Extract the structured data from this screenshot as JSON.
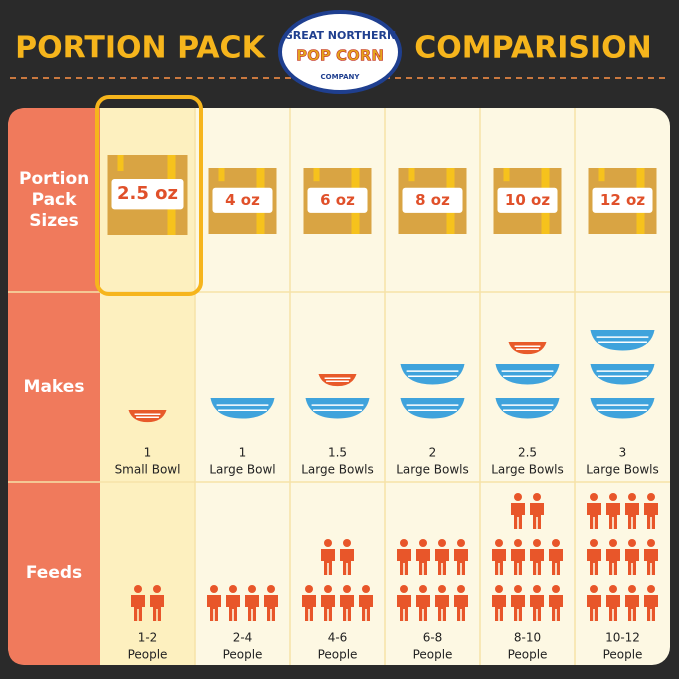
{
  "title": {
    "left": "PORTION PACK",
    "right": "COMPARISION"
  },
  "logo": {
    "top": "GREAT NORTHERN",
    "middle": "POP CORN",
    "bottom": "COMPANY"
  },
  "row_labels": [
    "Portion Pack Sizes",
    "Makes",
    "Feeds"
  ],
  "columns": [
    {
      "size": "2.5 oz",
      "makes_count": "1",
      "makes_unit": "Small Bowl",
      "feeds_count": "1-2",
      "feeds_unit": "People"
    },
    {
      "size": "4 oz",
      "makes_count": "1",
      "makes_unit": "Large Bowl",
      "feeds_count": "2-4",
      "feeds_unit": "People"
    },
    {
      "size": "6 oz",
      "makes_count": "1.5",
      "makes_unit": "Large Bowls",
      "feeds_count": "4-6",
      "feeds_unit": "People"
    },
    {
      "size": "8 oz",
      "makes_count": "2",
      "makes_unit": "Large Bowls",
      "feeds_count": "6-8",
      "feeds_unit": "People"
    },
    {
      "size": "10 oz",
      "makes_count": "2.5",
      "makes_unit": "Large Bowls",
      "feeds_count": "8-10",
      "feeds_unit": "People"
    },
    {
      "size": "12 oz",
      "makes_count": "3",
      "makes_unit": "Large Bowls",
      "feeds_count": "10-12",
      "feeds_unit": "People"
    }
  ]
}
